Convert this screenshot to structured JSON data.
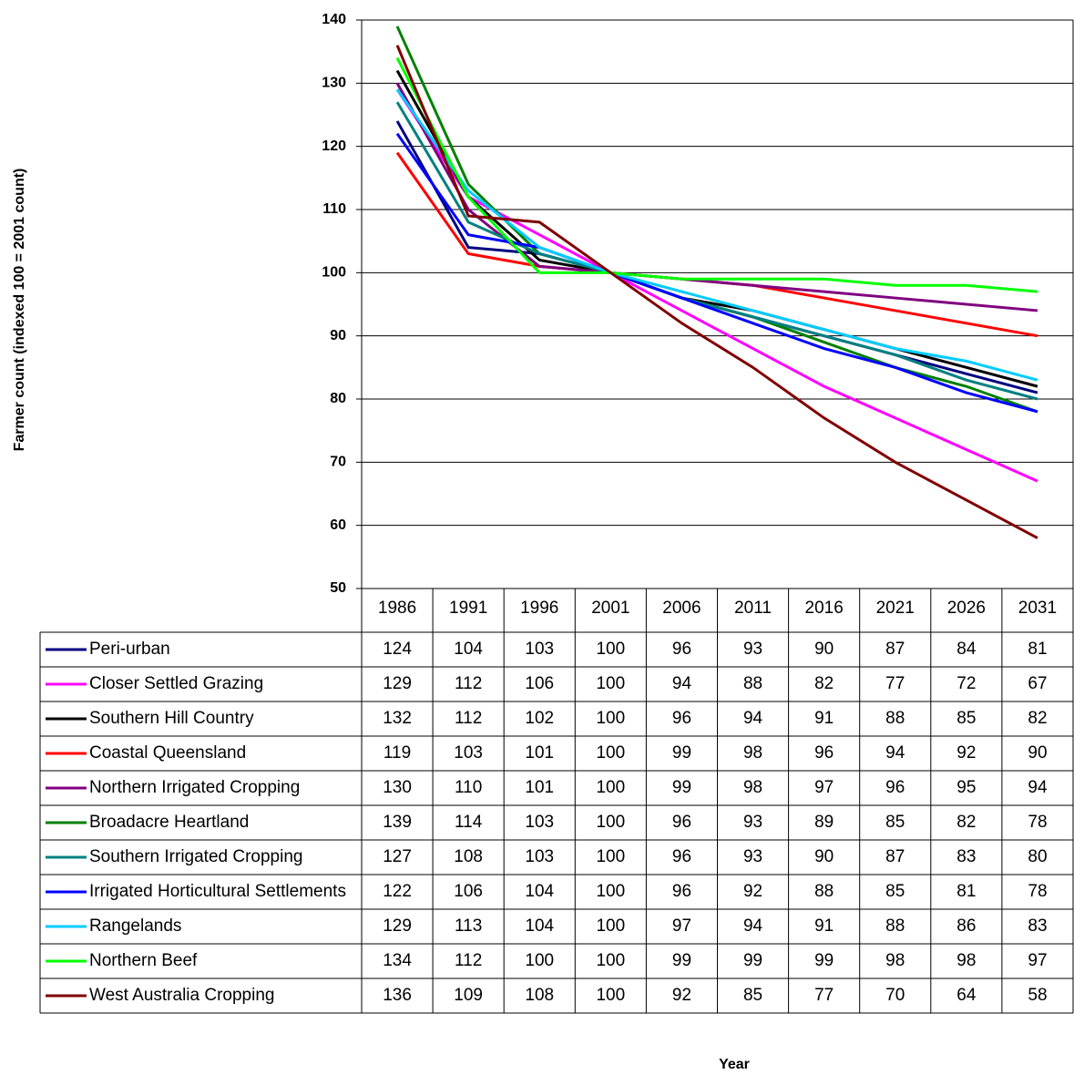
{
  "chart_data": {
    "type": "line",
    "y_label": "Farmer count (indexed 100 = 2001 count)",
    "x_label": "Year",
    "categories": [
      "1986",
      "1991",
      "1996",
      "2001",
      "2006",
      "2011",
      "2016",
      "2021",
      "2026",
      "2031"
    ],
    "ylim": [
      50,
      140
    ],
    "yticks": [
      50,
      60,
      70,
      80,
      90,
      100,
      110,
      120,
      130,
      140
    ],
    "grid": true,
    "series": [
      {
        "name": "Peri-urban",
        "color": "#000080",
        "values": [
          124,
          104,
          103,
          100,
          96,
          93,
          90,
          87,
          84,
          81
        ]
      },
      {
        "name": "Closer Settled Grazing",
        "color": "#ff00ff",
        "values": [
          129,
          112,
          106,
          100,
          94,
          88,
          82,
          77,
          72,
          67
        ]
      },
      {
        "name": "Southern Hill Country",
        "color": "#000000",
        "values": [
          132,
          112,
          102,
          100,
          96,
          94,
          91,
          88,
          85,
          82
        ]
      },
      {
        "name": "Coastal Queensland",
        "color": "#ff0000",
        "values": [
          119,
          103,
          101,
          100,
          99,
          98,
          96,
          94,
          92,
          90
        ]
      },
      {
        "name": "Northern Irrigated Cropping",
        "color": "#800080",
        "values": [
          130,
          110,
          101,
          100,
          99,
          98,
          97,
          96,
          95,
          94
        ]
      },
      {
        "name": "Broadacre Heartland",
        "color": "#008000",
        "values": [
          139,
          114,
          103,
          100,
          96,
          93,
          89,
          85,
          82,
          78
        ]
      },
      {
        "name": "Southern Irrigated Cropping",
        "color": "#008080",
        "values": [
          127,
          108,
          103,
          100,
          96,
          93,
          90,
          87,
          83,
          80
        ]
      },
      {
        "name": "Irrigated Horticultural Settlements",
        "color": "#0000ff",
        "values": [
          122,
          106,
          104,
          100,
          96,
          92,
          88,
          85,
          81,
          78
        ]
      },
      {
        "name": "Rangelands",
        "color": "#00ccff",
        "values": [
          129,
          113,
          104,
          100,
          97,
          94,
          91,
          88,
          86,
          83
        ]
      },
      {
        "name": "Northern Beef",
        "color": "#00ff00",
        "values": [
          134,
          112,
          100,
          100,
          99,
          99,
          99,
          98,
          98,
          97
        ]
      },
      {
        "name": "West Australia Cropping",
        "color": "#800000",
        "values": [
          136,
          109,
          108,
          100,
          92,
          85,
          77,
          70,
          64,
          58
        ]
      }
    ]
  }
}
